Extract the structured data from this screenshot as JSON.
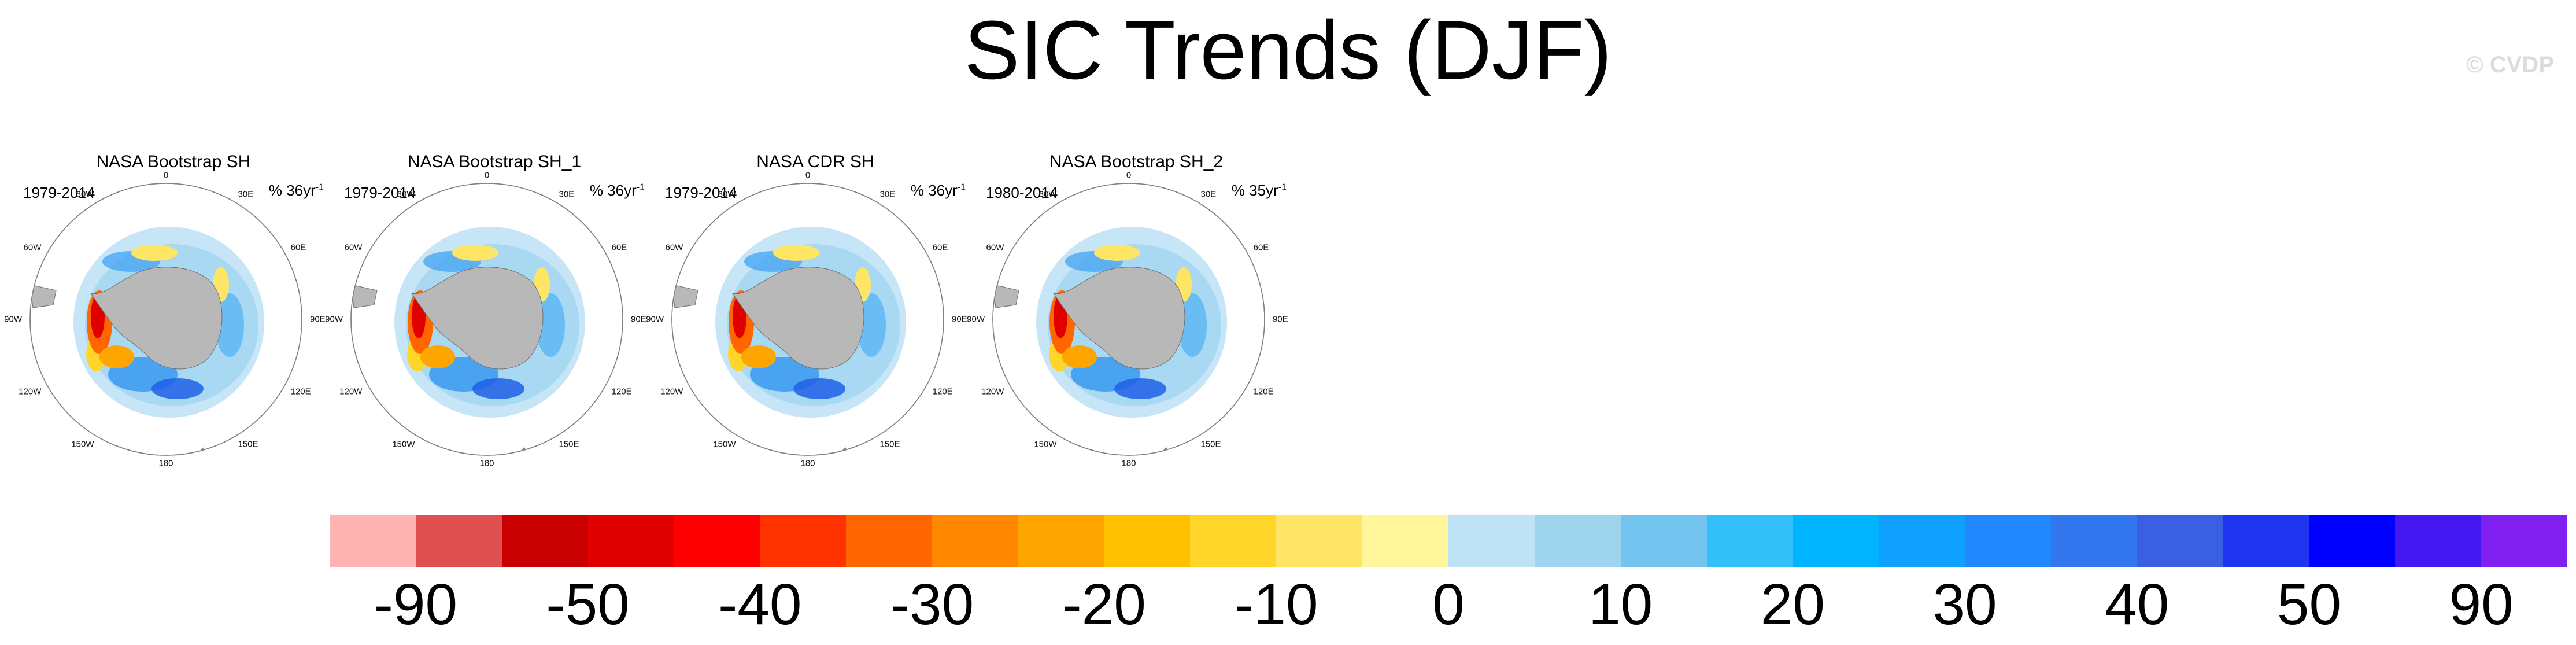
{
  "title": "SIC Trends (DJF)",
  "copyright": "© CVDP",
  "panels": [
    {
      "title": "NASA Bootstrap SH",
      "period": "1979-2014",
      "units": "% 36yr",
      "exponent": "-1"
    },
    {
      "title": "NASA Bootstrap SH_1",
      "period": "1979-2014",
      "units": "% 36yr",
      "exponent": "-1"
    },
    {
      "title": "NASA CDR SH",
      "period": "1979-2014",
      "units": "% 36yr",
      "exponent": "-1"
    },
    {
      "title": "NASA Bootstrap SH_2",
      "period": "1980-2014",
      "units": "% 35yr",
      "exponent": "-1"
    }
  ],
  "longitude_labels": [
    "0",
    "30E",
    "60E",
    "90E",
    "120E",
    "150E",
    "180",
    "150W",
    "120W",
    "90W",
    "60W",
    "30W"
  ],
  "colorbar": {
    "colors": [
      "#ffb3b3",
      "#e05050",
      "#c80000",
      "#e00000",
      "#ff0000",
      "#ff3300",
      "#ff6600",
      "#ff8800",
      "#ffa500",
      "#ffc000",
      "#ffd52a",
      "#ffe566",
      "#fff59a",
      "#c0e2f5",
      "#9fd4ef",
      "#74c4f0",
      "#33c0f8",
      "#00b4ff",
      "#10a0ff",
      "#2288ff",
      "#3377ee",
      "#3a5fe0",
      "#1f35f0",
      "#0000ff",
      "#4418f0",
      "#8020f0"
    ],
    "labels": [
      "-90",
      "-50",
      "-40",
      "-30",
      "-20",
      "-10",
      "0",
      "10",
      "20",
      "30",
      "40",
      "50",
      "90"
    ]
  },
  "map_colors": {
    "land": "#b8b8b8",
    "outline": "#808080"
  }
}
